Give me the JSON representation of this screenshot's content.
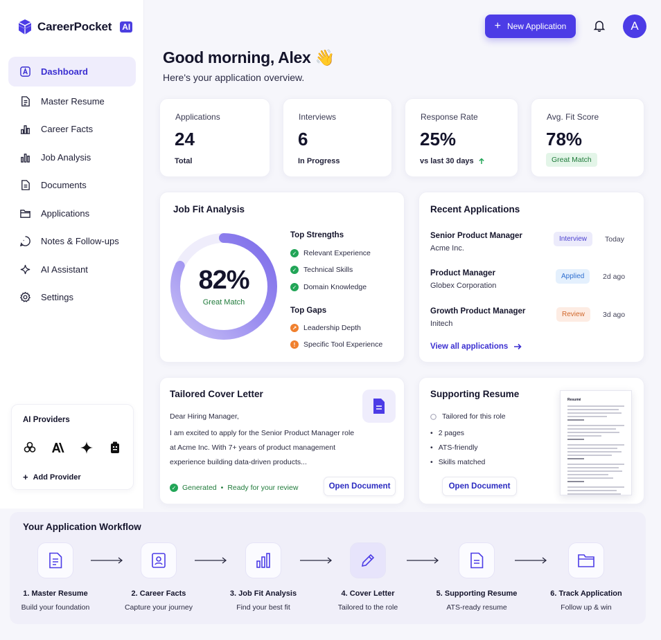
{
  "brand": {
    "name": "CareerPocket",
    "badge": "AI"
  },
  "nav": [
    {
      "label": "Dashboard",
      "icon": "dashboard-icon",
      "active": true
    },
    {
      "label": "Master Resume",
      "icon": "resume-icon"
    },
    {
      "label": "Career Facts",
      "icon": "career-facts-icon"
    },
    {
      "label": "Job Analysis",
      "icon": "bar-chart-icon"
    },
    {
      "label": "Documents",
      "icon": "document-icon"
    },
    {
      "label": "Applications",
      "icon": "folder-icon"
    },
    {
      "label": "Notes & Follow-ups",
      "icon": "note-icon"
    },
    {
      "label": "AI Assistant",
      "icon": "sparkle-icon"
    },
    {
      "label": "Settings",
      "icon": "gear-icon"
    }
  ],
  "providers": {
    "title": "AI Providers",
    "add_label": "Add Provider",
    "icons": [
      "openai-icon",
      "anthropic-icon",
      "gemini-icon",
      "provider-icon"
    ]
  },
  "header": {
    "new_button": "New Application",
    "avatar_initial": "A"
  },
  "greeting": {
    "title": "Good morning, Alex 👋",
    "subtitle": "Here's your application overview."
  },
  "stats": [
    {
      "label": "Applications",
      "value": "24",
      "foot": "Total"
    },
    {
      "label": "Interviews",
      "value": "6",
      "foot": "In Progress"
    },
    {
      "label": "Response Rate",
      "value": "25%",
      "foot": "vs last 30 days"
    },
    {
      "label": "Avg. Fit Score",
      "value": "78%",
      "foot": "Great Match"
    }
  ],
  "fit": {
    "title": "Job Fit Analysis",
    "score": "82%",
    "score_fraction": 0.82,
    "score_label": "Great Match",
    "strengths_title": "Top Strengths",
    "strengths": [
      "Relevant Experience",
      "Technical Skills",
      "Domain Knowledge"
    ],
    "gaps_title": "Top Gaps",
    "gaps": [
      "Leadership Depth",
      "Specific Tool Experience"
    ]
  },
  "recent": {
    "title": "Recent Applications",
    "items": [
      {
        "role": "Senior Product Manager",
        "company": "Acme Inc.",
        "status": "Interview",
        "time": "Today",
        "bg": "#ecebfb",
        "fg": "#4a3fcf"
      },
      {
        "role": "Product Manager",
        "company": "Globex Corporation",
        "status": "Applied",
        "time": "2d ago",
        "bg": "#e4f0fd",
        "fg": "#2f6fd0"
      },
      {
        "role": "Growth Product Manager",
        "company": "Initech",
        "status": "Review",
        "time": "3d ago",
        "bg": "#fdece3",
        "fg": "#d0672b"
      }
    ],
    "view_all": "View all applications"
  },
  "cover": {
    "title": "Tailored Cover Letter",
    "lines": [
      "Dear Hiring Manager,",
      "I am excited to apply for the Senior Product Manager role",
      "at Acme Inc. With 7+ years of product management",
      "experience building data-driven products..."
    ],
    "generated": "Generated",
    "ready": "Ready for your review",
    "button": "Open Document"
  },
  "supporting": {
    "title": "Supporting Resume",
    "items": [
      "Tailored for this role",
      "2 pages",
      "ATS-friendly",
      "Skills matched"
    ],
    "button": "Open Document",
    "thumb_heading": "Resumé"
  },
  "workflow": {
    "title": "Your Application Workflow",
    "steps": [
      {
        "title": "1. Master Resume",
        "desc": "Build your foundation"
      },
      {
        "title": "2. Career Facts",
        "desc": "Capture your journey"
      },
      {
        "title": "3. Job Fit Analysis",
        "desc": "Find your best fit"
      },
      {
        "title": "4. Cover Letter",
        "desc": "Tailored to the role"
      },
      {
        "title": "5. Supporting Resume",
        "desc": "ATS-ready resume"
      },
      {
        "title": "6. Track Application",
        "desc": "Follow up & win"
      }
    ]
  },
  "colors": {
    "accent": "#4c3ce6",
    "success": "#22a557",
    "warning": "#f0802e"
  }
}
